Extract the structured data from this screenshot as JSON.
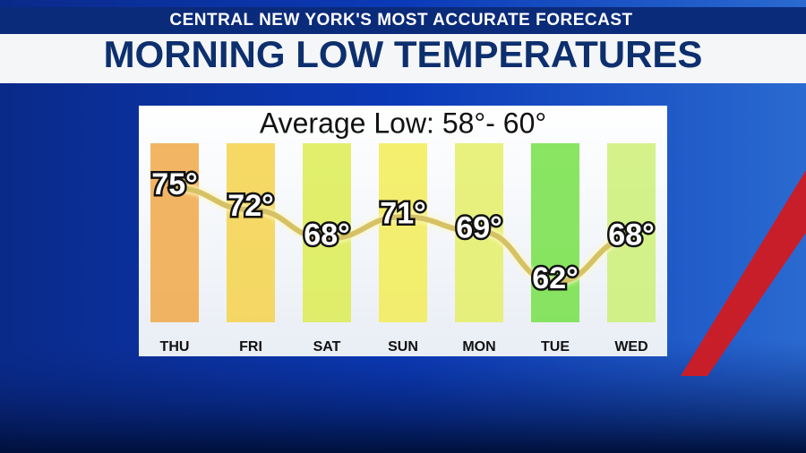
{
  "chart_data": {
    "type": "line",
    "kicker": "CENTRAL NEW YORK'S MOST ACCURATE FORECAST",
    "title": "MORNING LOW TEMPERATURES",
    "subtitle": "Average Low: 58°- 60°",
    "categories": [
      "THU",
      "FRI",
      "SAT",
      "SUN",
      "MON",
      "TUE",
      "WED"
    ],
    "values": [
      75,
      72,
      68,
      71,
      69,
      62,
      68
    ],
    "value_labels": [
      "75°",
      "72°",
      "68°",
      "71°",
      "69°",
      "62°",
      "68°"
    ],
    "colors": [
      "#f0a848",
      "#f4d24a",
      "#dcec52",
      "#f2ec56",
      "#e4ee66",
      "#74e046",
      "#ccf074"
    ],
    "color": "#d6c266"
  }
}
